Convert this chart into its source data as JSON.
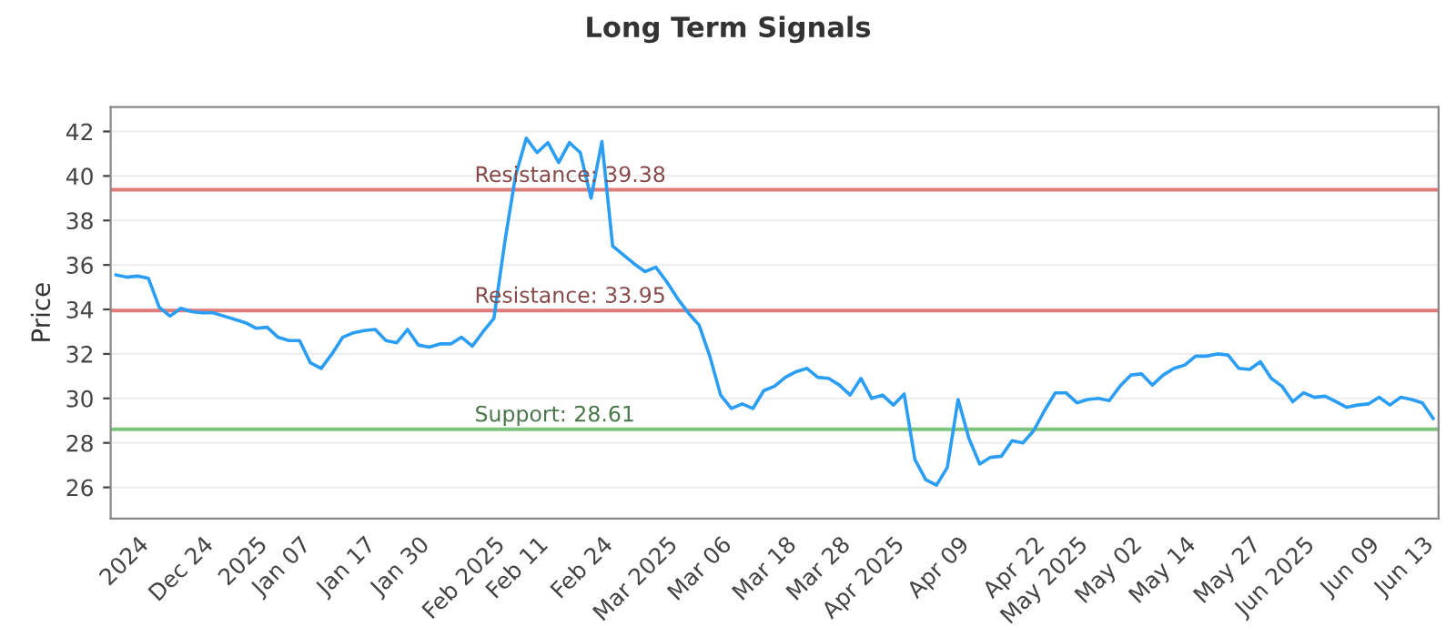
{
  "chart_data": {
    "type": "line",
    "title": "Long Term Signals",
    "ylabel": "Price",
    "categories": [
      null,
      null,
      "2024",
      null,
      null,
      null,
      null,
      null,
      "Dec 24",
      null,
      null,
      null,
      null,
      "2025",
      null,
      null,
      null,
      "Jan 07",
      null,
      null,
      null,
      null,
      null,
      "Jan 17",
      null,
      null,
      null,
      null,
      "Jan 30",
      null,
      null,
      null,
      null,
      null,
      null,
      "Feb 2025",
      null,
      null,
      null,
      "Feb 11",
      null,
      null,
      null,
      null,
      null,
      "Feb 24",
      null,
      null,
      null,
      null,
      null,
      "Mar 2025",
      null,
      null,
      null,
      null,
      "Mar 06",
      null,
      null,
      null,
      null,
      null,
      "Mar 18",
      null,
      null,
      null,
      null,
      "Mar 28",
      null,
      null,
      null,
      null,
      "Apr 2025",
      null,
      null,
      null,
      null,
      null,
      "Apr 09",
      null,
      null,
      null,
      null,
      null,
      null,
      "Apr 22",
      null,
      null,
      null,
      "May 2025",
      null,
      null,
      null,
      null,
      "May 02",
      null,
      null,
      null,
      null,
      "May 14",
      null,
      null,
      null,
      null,
      null,
      "May 27",
      null,
      null,
      null,
      null,
      "Jun 2025",
      null,
      null,
      null,
      null,
      null,
      "Jun 09",
      null,
      null,
      null,
      null,
      "Jun 13",
      null
    ],
    "series": [
      {
        "color": "#2a9df4",
        "values": [
          35.55,
          35.45,
          35.5,
          35.4,
          34.1,
          33.7,
          34.05,
          33.9,
          33.85,
          33.85,
          33.7,
          33.55,
          33.4,
          33.15,
          33.2,
          32.75,
          32.6,
          32.6,
          31.6,
          31.35,
          32.0,
          32.75,
          32.95,
          33.05,
          33.1,
          32.6,
          32.5,
          33.1,
          32.4,
          32.3,
          32.45,
          32.45,
          32.75,
          32.35,
          33.0,
          33.6,
          37.0,
          40.0,
          41.7,
          41.05,
          41.5,
          40.6,
          41.5,
          41.05,
          39.0,
          41.55,
          36.85,
          36.45,
          36.05,
          35.7,
          35.9,
          35.25,
          34.5,
          33.85,
          33.3,
          31.9,
          30.15,
          29.55,
          29.75,
          29.55,
          30.35,
          30.55,
          30.95,
          31.2,
          31.35,
          30.95,
          30.9,
          30.6,
          30.15,
          30.9,
          30.0,
          30.15,
          29.7,
          30.2,
          27.25,
          26.35,
          26.1,
          26.9,
          29.95,
          28.2,
          27.05,
          27.35,
          27.4,
          28.1,
          28.0,
          28.55,
          29.45,
          30.25,
          30.25,
          29.8,
          29.95,
          30.0,
          29.9,
          30.55,
          31.05,
          31.1,
          30.6,
          31.05,
          31.35,
          31.5,
          31.9,
          31.9,
          32.0,
          31.95,
          31.35,
          31.3,
          31.65,
          30.9,
          30.55,
          29.85,
          30.25,
          30.05,
          30.1,
          29.85,
          29.6,
          29.7,
          29.75,
          30.05,
          29.7,
          30.05,
          29.95,
          29.8,
          29.1
        ]
      }
    ],
    "ylim": [
      24.6,
      43.1
    ],
    "yticks": [
      26,
      28,
      30,
      32,
      34,
      36,
      38,
      40,
      42
    ],
    "grid": "y",
    "ref_lines": [
      {
        "axis": "y",
        "value": 39.38,
        "label": "Resistance: 39.38",
        "color": "#e07b7b"
      },
      {
        "axis": "y",
        "value": 33.95,
        "label": "Resistance: 33.95",
        "color": "#e07b7b"
      },
      {
        "axis": "y",
        "value": 28.61,
        "label": "Support: 28.61",
        "color": "#7cc47c"
      }
    ]
  }
}
